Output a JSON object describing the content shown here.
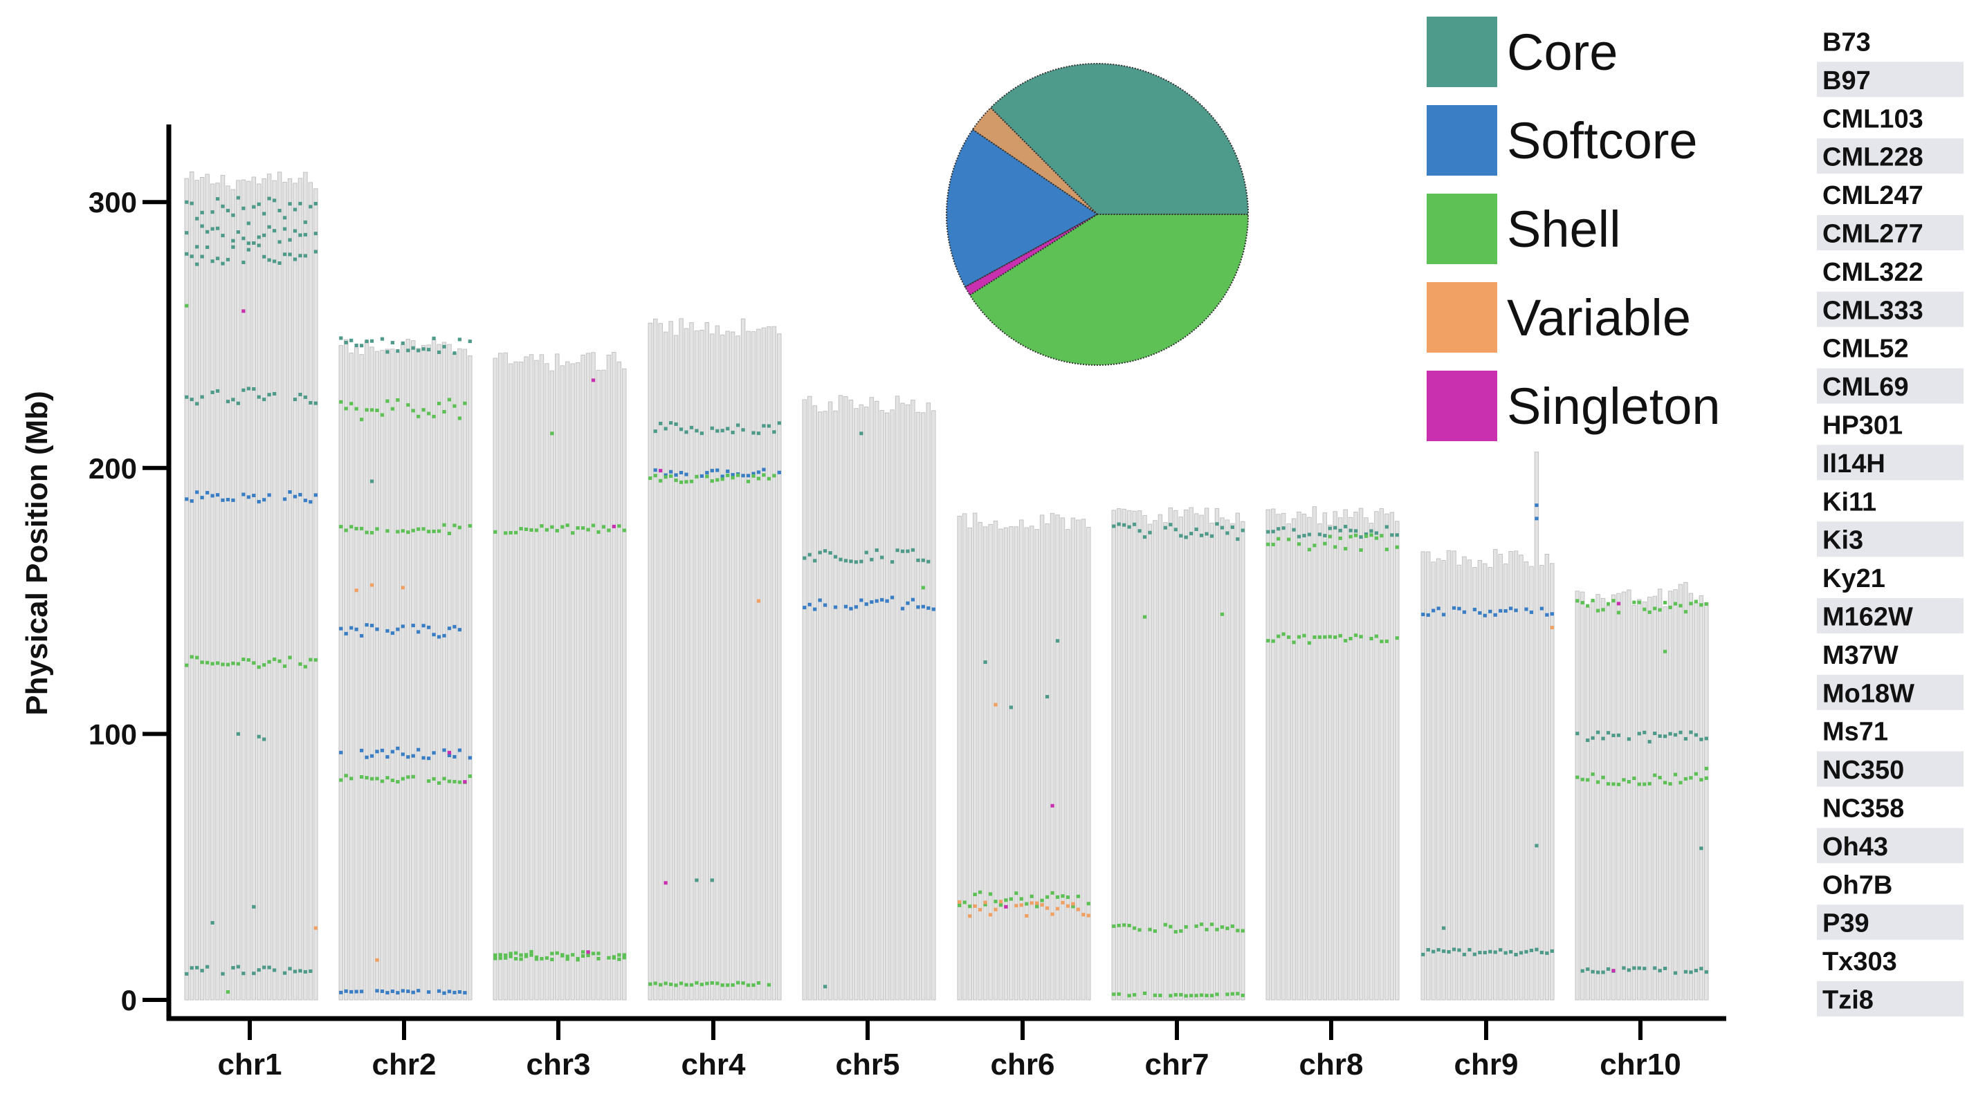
{
  "chart_data": {
    "type": "scatter",
    "subtype": "chromosome-ideogram",
    "title": "",
    "xlabel": "",
    "ylabel": "Physical Position (Mb)",
    "ylim": [
      0,
      330
    ],
    "yticks": [
      0,
      100,
      200,
      300
    ],
    "grid": false,
    "categories": [
      "chr1",
      "chr2",
      "chr3",
      "chr4",
      "chr5",
      "chr6",
      "chr7",
      "chr8",
      "chr9",
      "chr10"
    ],
    "chromosome_lengths_mb": [
      308,
      245,
      240,
      253,
      224,
      180,
      182,
      182,
      166,
      151
    ],
    "lines": [
      "B73",
      "B97",
      "CML103",
      "CML228",
      "CML247",
      "CML277",
      "CML322",
      "CML333",
      "CML52",
      "CML69",
      "HP301",
      "Il14H",
      "Ki11",
      "Ki3",
      "Ky21",
      "M162W",
      "M37W",
      "Mo18W",
      "Ms71",
      "NC350",
      "NC358",
      "Oh43",
      "Oh7B",
      "P39",
      "Tx303",
      "Tzi8"
    ],
    "classes": [
      {
        "name": "Core",
        "color": "#4E9A8B"
      },
      {
        "name": "Softcore",
        "color": "#3A7EC6"
      },
      {
        "name": "Shell",
        "color": "#5DC155"
      },
      {
        "name": "Variable",
        "color": "#F0A163"
      },
      {
        "name": "Singleton",
        "color": "#C930B0"
      }
    ],
    "pie": {
      "labels": [
        "Core",
        "Variable",
        "Softcore",
        "Singleton",
        "Shell"
      ],
      "values": [
        37.5,
        3.0,
        17.5,
        1.0,
        41.0
      ],
      "colors": [
        "#4E9A8B",
        "#D39A69",
        "#3A7EC6",
        "#C930B0",
        "#5DC155"
      ]
    },
    "bands": [
      {
        "chr": "chr1",
        "pos": 297,
        "class": "Core",
        "spread": 5
      },
      {
        "chr": "chr1",
        "pos": 287,
        "class": "Core",
        "spread": 4
      },
      {
        "chr": "chr1",
        "pos": 280,
        "class": "Core",
        "spread": 4
      },
      {
        "chr": "chr1",
        "pos": 227,
        "class": "Core",
        "spread": 3
      },
      {
        "chr": "chr1",
        "pos": 189,
        "class": "Softcore",
        "spread": 2
      },
      {
        "chr": "chr1",
        "pos": 127,
        "class": "Shell",
        "spread": 2
      },
      {
        "chr": "chr1",
        "pos": 11,
        "class": "Core",
        "spread": 1.5
      },
      {
        "chr": "chr2",
        "pos": 246,
        "class": "Core",
        "spread": 3
      },
      {
        "chr": "chr2",
        "pos": 222,
        "class": "Shell",
        "spread": 4
      },
      {
        "chr": "chr2",
        "pos": 177,
        "class": "Shell",
        "spread": 2
      },
      {
        "chr": "chr2",
        "pos": 139,
        "class": "Softcore",
        "spread": 2.5
      },
      {
        "chr": "chr2",
        "pos": 93,
        "class": "Softcore",
        "spread": 2.5
      },
      {
        "chr": "chr2",
        "pos": 83,
        "class": "Shell",
        "spread": 1.5
      },
      {
        "chr": "chr2",
        "pos": 3,
        "class": "Softcore",
        "spread": 0.5
      },
      {
        "chr": "chr3",
        "pos": 177,
        "class": "Shell",
        "spread": 1.5
      },
      {
        "chr": "chr3",
        "pos": 17,
        "class": "Shell",
        "spread": 1.5
      },
      {
        "chr": "chr3",
        "pos": 16,
        "class": "Shell",
        "spread": 1
      },
      {
        "chr": "chr4",
        "pos": 215,
        "class": "Core",
        "spread": 2
      },
      {
        "chr": "chr4",
        "pos": 198,
        "class": "Softcore",
        "spread": 1.5
      },
      {
        "chr": "chr4",
        "pos": 196,
        "class": "Shell",
        "spread": 1.5
      },
      {
        "chr": "chr4",
        "pos": 6,
        "class": "Shell",
        "spread": 0.5
      },
      {
        "chr": "chr5",
        "pos": 167,
        "class": "Core",
        "spread": 2.5
      },
      {
        "chr": "chr5",
        "pos": 149,
        "class": "Softcore",
        "spread": 2.5
      },
      {
        "chr": "chr6",
        "pos": 38,
        "class": "Shell",
        "spread": 3
      },
      {
        "chr": "chr6",
        "pos": 34,
        "class": "Variable",
        "spread": 3
      },
      {
        "chr": "chr7",
        "pos": 176,
        "class": "Core",
        "spread": 3
      },
      {
        "chr": "chr7",
        "pos": 27,
        "class": "Shell",
        "spread": 1.5
      },
      {
        "chr": "chr7",
        "pos": 2,
        "class": "Shell",
        "spread": 0.5
      },
      {
        "chr": "chr8",
        "pos": 176,
        "class": "Core",
        "spread": 2
      },
      {
        "chr": "chr8",
        "pos": 172,
        "class": "Shell",
        "spread": 3
      },
      {
        "chr": "chr8",
        "pos": 136,
        "class": "Shell",
        "spread": 2
      },
      {
        "chr": "chr9",
        "pos": 146,
        "class": "Softcore",
        "spread": 1.5
      },
      {
        "chr": "chr9",
        "pos": 18,
        "class": "Core",
        "spread": 1
      },
      {
        "chr": "chr10",
        "pos": 148,
        "class": "Shell",
        "spread": 2.5
      },
      {
        "chr": "chr10",
        "pos": 99,
        "class": "Core",
        "spread": 2
      },
      {
        "chr": "chr10",
        "pos": 83,
        "class": "Shell",
        "spread": 2
      },
      {
        "chr": "chr10",
        "pos": 11,
        "class": "Core",
        "spread": 1
      }
    ],
    "scattered_points": [
      {
        "chr": "chr1",
        "line": "Il14H",
        "pos": 259,
        "class": "Singleton"
      },
      {
        "chr": "chr1",
        "line": "B73",
        "pos": 261,
        "class": "Shell"
      },
      {
        "chr": "chr1",
        "line": "HP301",
        "pos": 100,
        "class": "Core"
      },
      {
        "chr": "chr1",
        "line": "Ky21",
        "pos": 99,
        "class": "Core"
      },
      {
        "chr": "chr1",
        "line": "M162W",
        "pos": 98,
        "class": "Core"
      },
      {
        "chr": "chr1",
        "line": "CML277",
        "pos": 29,
        "class": "Core"
      },
      {
        "chr": "chr1",
        "line": "Ki3",
        "pos": 35,
        "class": "Core"
      },
      {
        "chr": "chr1",
        "line": "Tzi8",
        "pos": 27,
        "class": "Variable"
      },
      {
        "chr": "chr1",
        "line": "CML52",
        "pos": 3,
        "class": "Shell"
      },
      {
        "chr": "chr2",
        "line": "CML228",
        "pos": 154,
        "class": "Variable"
      },
      {
        "chr": "chr2",
        "line": "CML322",
        "pos": 156,
        "class": "Variable"
      },
      {
        "chr": "chr2",
        "line": "Ki11",
        "pos": 155,
        "class": "Variable"
      },
      {
        "chr": "chr2",
        "line": "CML333",
        "pos": 15,
        "class": "Variable"
      },
      {
        "chr": "chr2",
        "line": "Oh43",
        "pos": 93,
        "class": "Singleton"
      },
      {
        "chr": "chr2",
        "line": "Tx303",
        "pos": 82,
        "class": "Singleton"
      },
      {
        "chr": "chr2",
        "line": "CML322",
        "pos": 195,
        "class": "Core"
      },
      {
        "chr": "chr3",
        "line": "P39",
        "pos": 178,
        "class": "Singleton"
      },
      {
        "chr": "chr3",
        "line": "NC350",
        "pos": 233,
        "class": "Singleton"
      },
      {
        "chr": "chr3",
        "line": "Il14H",
        "pos": 213,
        "class": "Shell"
      },
      {
        "chr": "chr3",
        "line": "Ms71",
        "pos": 18,
        "class": "Singleton"
      },
      {
        "chr": "chr4",
        "line": "CML103",
        "pos": 199,
        "class": "Singleton"
      },
      {
        "chr": "chr4",
        "line": "CML228",
        "pos": 44,
        "class": "Singleton"
      },
      {
        "chr": "chr4",
        "line": "CML69",
        "pos": 45,
        "class": "Core"
      },
      {
        "chr": "chr4",
        "line": "Ki11",
        "pos": 45,
        "class": "Core"
      },
      {
        "chr": "chr4",
        "line": "Oh43",
        "pos": 150,
        "class": "Variable"
      },
      {
        "chr": "chr5",
        "line": "Il14H",
        "pos": 213,
        "class": "Core"
      },
      {
        "chr": "chr5",
        "line": "CML247",
        "pos": 5,
        "class": "Core"
      },
      {
        "chr": "chr5",
        "line": "P39",
        "pos": 155,
        "class": "Shell"
      },
      {
        "chr": "chr6",
        "line": "CML277",
        "pos": 127,
        "class": "Core"
      },
      {
        "chr": "chr6",
        "line": "CML333",
        "pos": 111,
        "class": "Variable"
      },
      {
        "chr": "chr6",
        "line": "HP301",
        "pos": 110,
        "class": "Core"
      },
      {
        "chr": "chr6",
        "line": "Mo18W",
        "pos": 114,
        "class": "Core"
      },
      {
        "chr": "chr6",
        "line": "NC350",
        "pos": 135,
        "class": "Core"
      },
      {
        "chr": "chr6",
        "line": "Ms71",
        "pos": 73,
        "class": "Singleton"
      },
      {
        "chr": "chr6",
        "line": "CML69",
        "pos": 35,
        "class": "Singleton"
      },
      {
        "chr": "chr7",
        "line": "CML322",
        "pos": 144,
        "class": "Shell"
      },
      {
        "chr": "chr7",
        "line": "Oh43",
        "pos": 145,
        "class": "Shell"
      },
      {
        "chr": "chr9",
        "line": "Oh7B",
        "pos": 186,
        "class": "Softcore"
      },
      {
        "chr": "chr9",
        "line": "Oh7B",
        "pos": 181,
        "class": "Softcore"
      },
      {
        "chr": "chr9",
        "line": "Oh7B",
        "pos": 58,
        "class": "Core"
      },
      {
        "chr": "chr9",
        "line": "CML247",
        "pos": 27,
        "class": "Core"
      },
      {
        "chr": "chr9",
        "line": "Tzi8",
        "pos": 140,
        "class": "Variable"
      },
      {
        "chr": "chr10",
        "line": "CML52",
        "pos": 149,
        "class": "Singleton"
      },
      {
        "chr": "chr10",
        "line": "Tx303",
        "pos": 57,
        "class": "Core"
      },
      {
        "chr": "chr10",
        "line": "Mo18W",
        "pos": 131,
        "class": "Shell"
      },
      {
        "chr": "chr10",
        "line": "CML333",
        "pos": 11,
        "class": "Singleton"
      },
      {
        "chr": "chr10",
        "line": "Tzi8",
        "pos": 87,
        "class": "Shell"
      }
    ]
  }
}
